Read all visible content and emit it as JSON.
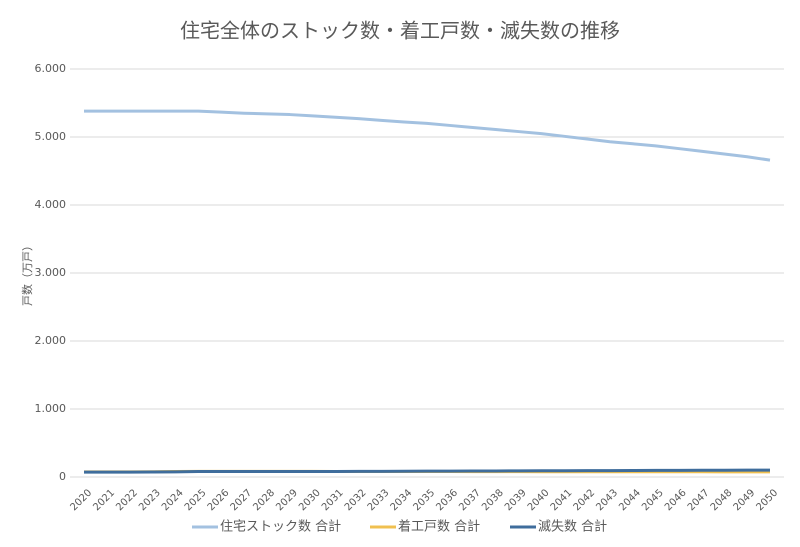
{
  "chart_data": {
    "type": "line",
    "title": "住宅全体のストック数・着工戸数・滅失数の推移",
    "y_label": "戸数（万戸）",
    "x": [
      "2020",
      "2021",
      "2022",
      "2023",
      "2024",
      "2025",
      "2026",
      "2027",
      "2028",
      "2029",
      "2030",
      "2031",
      "2032",
      "2033",
      "2034",
      "2035",
      "2036",
      "2037",
      "2038",
      "2039",
      "2040",
      "2041",
      "2042",
      "2043",
      "2044",
      "2045",
      "2046",
      "2047",
      "2048",
      "2049",
      "2050"
    ],
    "series": [
      {
        "name": "住宅ストック数 合計",
        "color": "#a3c1e0",
        "values": [
          5380,
          5380,
          5380,
          5380,
          5380,
          5380,
          5365,
          5350,
          5340,
          5330,
          5310,
          5290,
          5270,
          5245,
          5220,
          5200,
          5170,
          5140,
          5110,
          5080,
          5050,
          5010,
          4970,
          4930,
          4900,
          4870,
          4830,
          4790,
          4750,
          4710,
          4660
        ]
      },
      {
        "name": "着工戸数 合計",
        "color": "#f0c050",
        "values": [
          75,
          75,
          76,
          78,
          80,
          82,
          82,
          82,
          82,
          82,
          82,
          81,
          81,
          80,
          80,
          80,
          80,
          79,
          79,
          79,
          78,
          78,
          78,
          78,
          78,
          77,
          77,
          77,
          76,
          76,
          75
        ]
      },
      {
        "name": "滅失数 合計",
        "color": "#3f6d9c",
        "values": [
          72,
          72,
          72,
          74,
          76,
          80,
          80,
          80,
          80,
          80,
          80,
          81,
          82,
          83,
          85,
          86,
          87,
          88,
          89,
          90,
          91,
          92,
          93,
          94,
          96,
          97,
          98,
          99,
          100,
          101,
          102
        ]
      }
    ],
    "ylim": [
      0,
      6000
    ],
    "yticks": [
      0,
      {
        "value": 1000,
        "label": "1.000"
      },
      {
        "value": 2000,
        "label": "2.000"
      },
      {
        "value": 3000,
        "label": "3.000"
      },
      {
        "value": 4000,
        "label": "4.000"
      },
      {
        "value": 5000,
        "label": "5.000"
      },
      {
        "value": 6000,
        "label": "6.000"
      }
    ],
    "grid": true,
    "legend": "bottom"
  }
}
